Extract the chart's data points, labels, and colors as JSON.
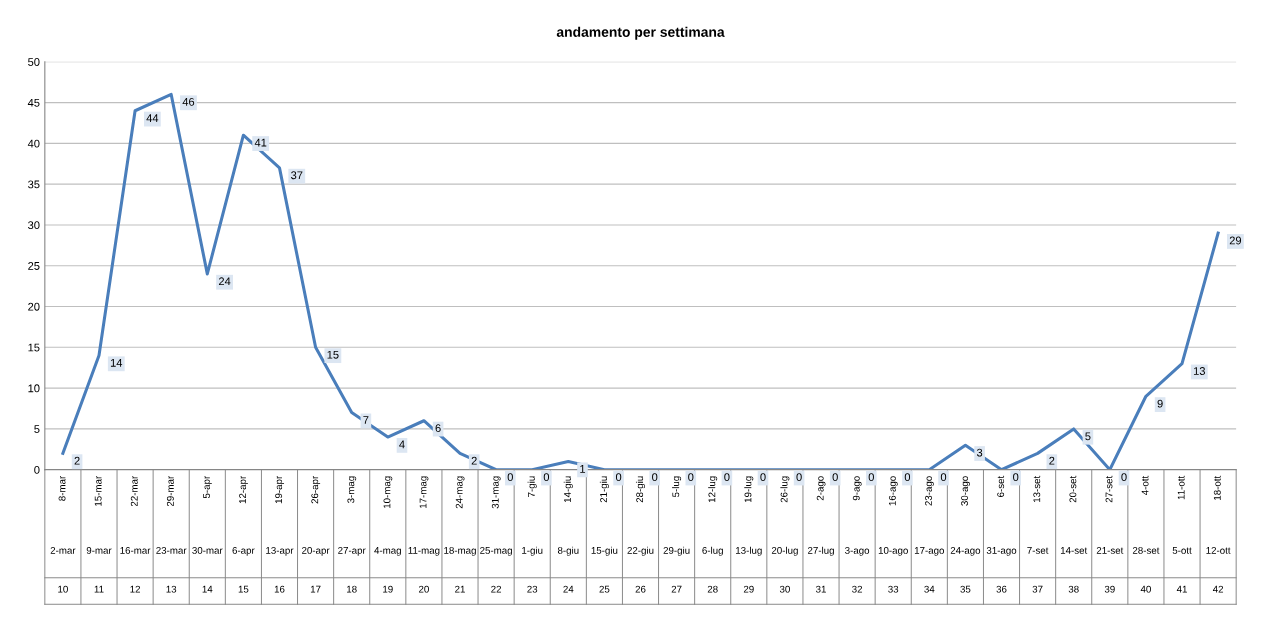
{
  "chart_data": {
    "type": "line",
    "title": "andamento per settimana",
    "categories": [
      "8-mar\n2-mar\n10",
      "15-mar\n9-mar\n11",
      "22-mar\n16-mar\n12",
      "29-mar\n23-mar\n13",
      "5-apr\n30-mar\n14",
      "12-apr\n6-apr\n15",
      "19-apr\n13-apr\n16",
      "26-apr\n20-apr\n17",
      "3-mag\n27-apr\n18",
      "10-mag\n4-mag\n19",
      "17-mag\n11-mag\n20",
      "24-mag\n18-mag\n21",
      "31-mag\n25-mag\n22",
      "7-giu\n1-giu\n23",
      "14-giu\n8-giu\n24",
      "21-giu\n15-giu\n25",
      "28-giu\n22-giu\n26",
      "5-lug\n29-giu\n27",
      "12-lug\n6-lug\n28",
      "19-lug\n13-lug\n29",
      "26-lug\n20-lug\n30",
      "2-ago\n27-lug\n31",
      "9-ago\n3-ago\n32",
      "16-ago\n10-ago\n33",
      "23-ago\n17-ago\n34",
      "30-ago\n24-ago\n35",
      "6-set\n31-ago\n36",
      "13-set\n7-set\n37",
      "20-set\n14-set\n38",
      "27-set\n21-set\n39",
      "4-ott\n28-set\n40",
      "11-ott\n5-ott\n41",
      "18-ott\n12-ott\n42"
    ],
    "series": [
      {
        "color": "#4a7ebb",
        "values": [
          2,
          14,
          44,
          46,
          24,
          41,
          37,
          15,
          7,
          4,
          6,
          2,
          0,
          0,
          1,
          0,
          0,
          0,
          0,
          0,
          0,
          0,
          0,
          0,
          0,
          3,
          0,
          2,
          5,
          0,
          9,
          13,
          29
        ]
      }
    ],
    "ylim": [
      0,
      50
    ],
    "yticks": [
      0,
      5,
      10,
      15,
      20,
      25,
      30,
      35,
      40,
      45,
      50
    ],
    "grid": "y",
    "data_labels": true,
    "marker": "none",
    "line_style": "solid",
    "legend": false
  }
}
